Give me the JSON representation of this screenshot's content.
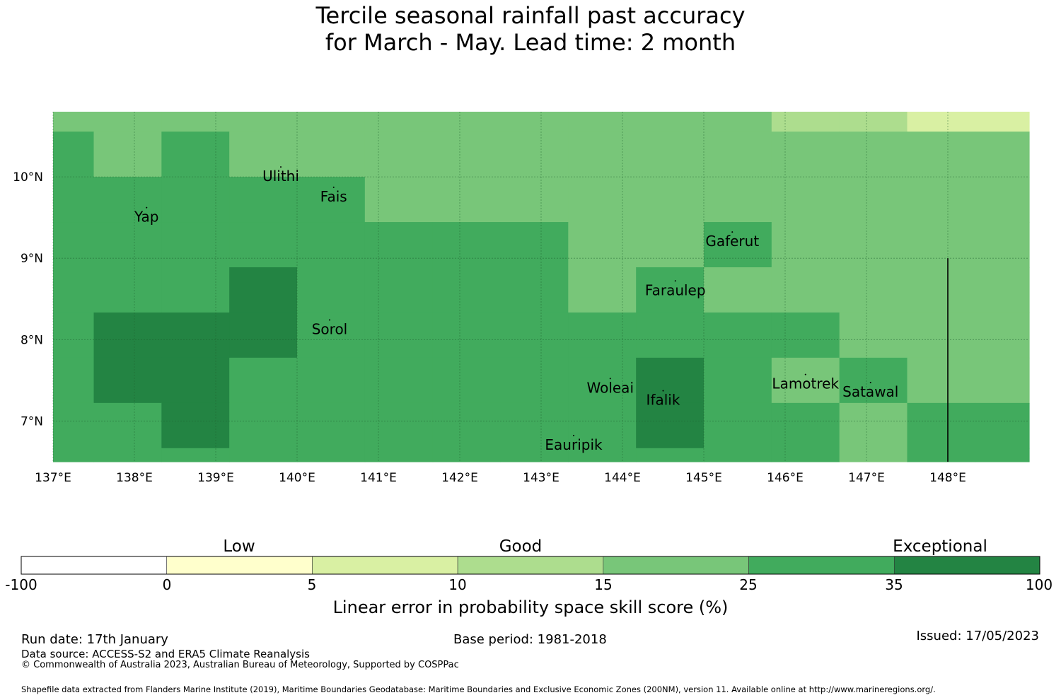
{
  "title": {
    "line1": "Tercile seasonal rainfall past accuracy",
    "line2": "for March - May. Lead time: 2 month"
  },
  "map": {
    "lon_range": [
      137.0,
      149.0
    ],
    "lat_range": [
      6.5,
      10.8
    ],
    "lon_ticks": [
      "137°E",
      "138°E",
      "139°E",
      "140°E",
      "141°E",
      "142°E",
      "143°E",
      "144°E",
      "145°E",
      "146°E",
      "147°E",
      "148°E"
    ],
    "lon_tick_values": [
      137,
      138,
      139,
      140,
      141,
      142,
      143,
      144,
      145,
      146,
      147,
      148
    ],
    "lat_ticks": [
      "10°N",
      "9°N",
      "8°N",
      "7°N"
    ],
    "lat_tick_values": [
      10,
      9,
      8,
      7
    ],
    "grid_lon_edges": [
      137.0,
      137.5,
      138.3333,
      139.1667,
      140.0,
      140.8333,
      141.6667,
      142.5,
      143.3333,
      144.1667,
      145.0,
      145.8333,
      146.6667,
      147.5,
      148.3333,
      149.0
    ],
    "grid_lat_edges": [
      10.8,
      10.5556,
      10.0,
      9.4444,
      8.8889,
      8.3333,
      7.7778,
      7.2222,
      6.6667,
      6.5
    ],
    "skill_class_rows": [
      [
        4,
        4,
        4,
        4,
        4,
        4,
        4,
        4,
        4,
        4,
        4,
        3,
        3,
        2,
        2
      ],
      [
        5,
        4,
        5,
        4,
        4,
        4,
        4,
        4,
        4,
        4,
        4,
        4,
        4,
        4,
        4
      ],
      [
        5,
        5,
        5,
        5,
        5,
        4,
        4,
        4,
        4,
        4,
        4,
        4,
        4,
        4,
        4
      ],
      [
        5,
        5,
        5,
        5,
        5,
        5,
        5,
        5,
        4,
        4,
        5,
        4,
        4,
        4,
        4
      ],
      [
        5,
        5,
        5,
        6,
        5,
        5,
        5,
        5,
        4,
        5,
        4,
        4,
        4,
        4,
        4
      ],
      [
        5,
        6,
        6,
        6,
        5,
        5,
        5,
        5,
        5,
        5,
        5,
        5,
        4,
        4,
        4
      ],
      [
        5,
        6,
        6,
        5,
        5,
        5,
        5,
        5,
        5,
        6,
        5,
        4,
        5,
        4,
        4
      ],
      [
        5,
        5,
        6,
        5,
        5,
        5,
        5,
        5,
        5,
        6,
        5,
        5,
        4,
        5,
        5
      ],
      [
        5,
        5,
        5,
        5,
        5,
        5,
        5,
        5,
        5,
        5,
        5,
        5,
        4,
        5,
        5
      ]
    ],
    "islands": [
      {
        "name": "Ulithi",
        "lon": 139.8,
        "lat": 10.0
      },
      {
        "name": "Yap",
        "lon": 138.15,
        "lat": 9.5
      },
      {
        "name": "Fais",
        "lon": 140.45,
        "lat": 9.75
      },
      {
        "name": "Gaferut",
        "lon": 145.35,
        "lat": 9.2
      },
      {
        "name": "Faraulep",
        "lon": 144.65,
        "lat": 8.6
      },
      {
        "name": "Sorol",
        "lon": 140.4,
        "lat": 8.12
      },
      {
        "name": "Woleai",
        "lon": 143.85,
        "lat": 7.4
      },
      {
        "name": "Ifalik",
        "lon": 144.5,
        "lat": 7.25
      },
      {
        "name": "Lamotrek",
        "lon": 146.25,
        "lat": 7.45
      },
      {
        "name": "Satawal",
        "lon": 147.05,
        "lat": 7.35
      },
      {
        "name": "Eauripik",
        "lon": 143.4,
        "lat": 6.7
      }
    ],
    "eez_boundary": {
      "lon": 148.0,
      "lat_from": 9.0,
      "lat_to": 6.5
    }
  },
  "legend": {
    "class_colors": [
      "#ffffff",
      "#ffffcc",
      "#d9f0a3",
      "#addd8e",
      "#78c679",
      "#41ab5d",
      "#238443"
    ],
    "ticks": [
      "-100",
      "0",
      "5",
      "10",
      "15",
      "25",
      "35",
      "100"
    ],
    "categories": [
      "Low",
      "Good",
      "Exceptional"
    ],
    "title": "Linear error in probability space skill score (%)"
  },
  "footer": {
    "run_date": "Run date: 17th January",
    "base_period": "Base period: 1981-2018",
    "issued": "Issued: 17/05/2023",
    "data_source": "Data source: ACCESS-S2 and ERA5 Climate Reanalysis",
    "copyright": "© Commonwealth of Australia 2023, Australian Bureau of Meteorology, Supported by COSPPac",
    "shapefile": "Shapefile data extracted from Flanders Marine Institute (2019), Maritime Boundaries Geodatabase: Maritime Boundaries and Exclusive Economic Zones (200NM), version 11. Available online at http://www.marineregions.org/."
  }
}
